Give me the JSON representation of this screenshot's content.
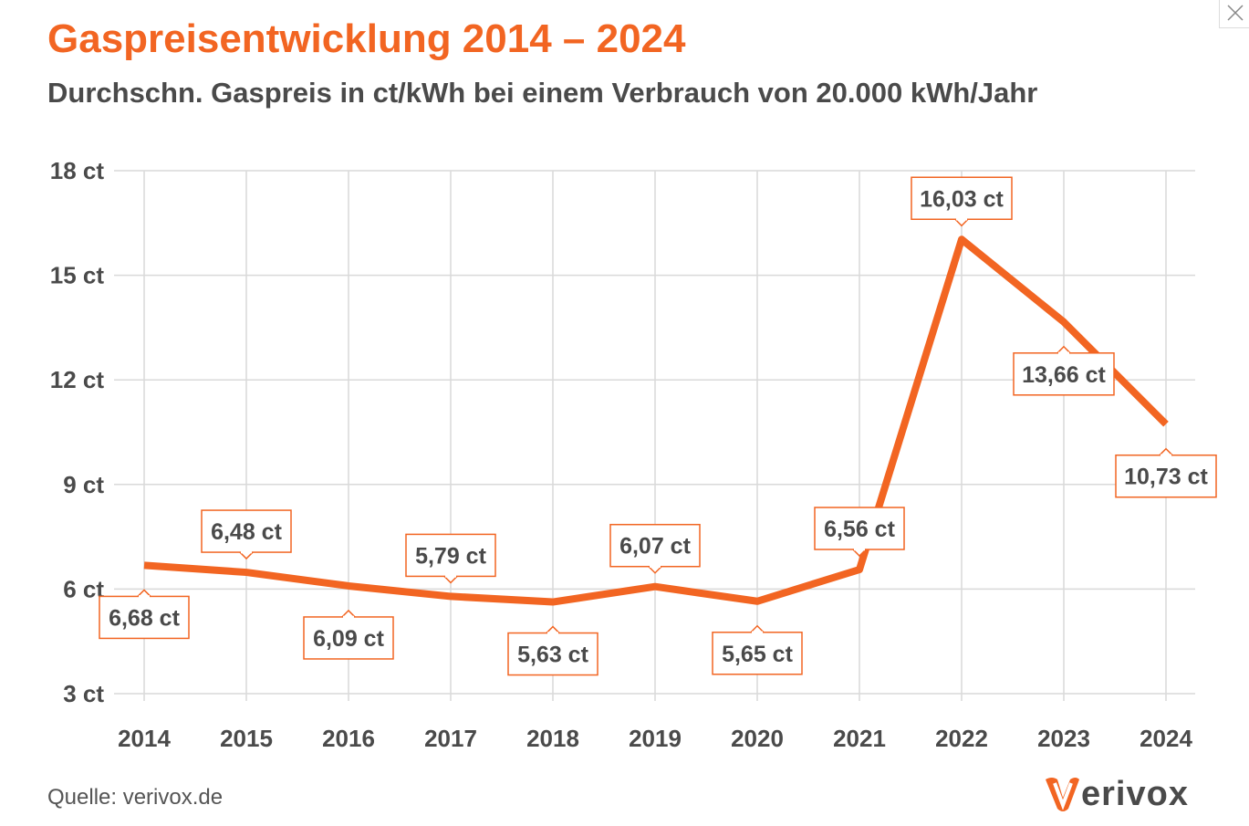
{
  "chart_data": {
    "type": "line",
    "title": "Gaspreisentwicklung 2014 – 2024",
    "subtitle": "Durchschn. Gaspreis in ct/kWh bei einem Verbrauch von 20.000 kWh/Jahr",
    "categories": [
      "2014",
      "2015",
      "2016",
      "2017",
      "2018",
      "2019",
      "2020",
      "2021",
      "2022",
      "2023",
      "2024"
    ],
    "values": [
      6.68,
      6.48,
      6.09,
      5.79,
      5.63,
      6.07,
      5.65,
      6.56,
      16.03,
      13.66,
      10.73
    ],
    "data_labels": [
      "6,68 ct",
      "6,48 ct",
      "6,09 ct",
      "5,79 ct",
      "5,63 ct",
      "6,07 ct",
      "5,65 ct",
      "6,56 ct",
      "16,03 ct",
      "13,66 ct",
      "10,73 ct"
    ],
    "label_positions": [
      "below",
      "above",
      "below",
      "above",
      "below",
      "above",
      "below",
      "above",
      "above",
      "below",
      "below"
    ],
    "yticks": [
      3,
      6,
      9,
      12,
      15,
      18
    ],
    "ytick_labels": [
      "3 ct",
      "6 ct",
      "9 ct",
      "12 ct",
      "15 ct",
      "18 ct"
    ],
    "ylim": [
      3,
      18
    ],
    "xlabel": "",
    "ylabel": "",
    "grid": true,
    "line_color": "#f26522"
  },
  "source": "Quelle: verivox.de",
  "logo_text": "erivox",
  "colors": {
    "accent": "#f26522",
    "text": "#4a4a4a",
    "grid": "#d9d9d9"
  }
}
